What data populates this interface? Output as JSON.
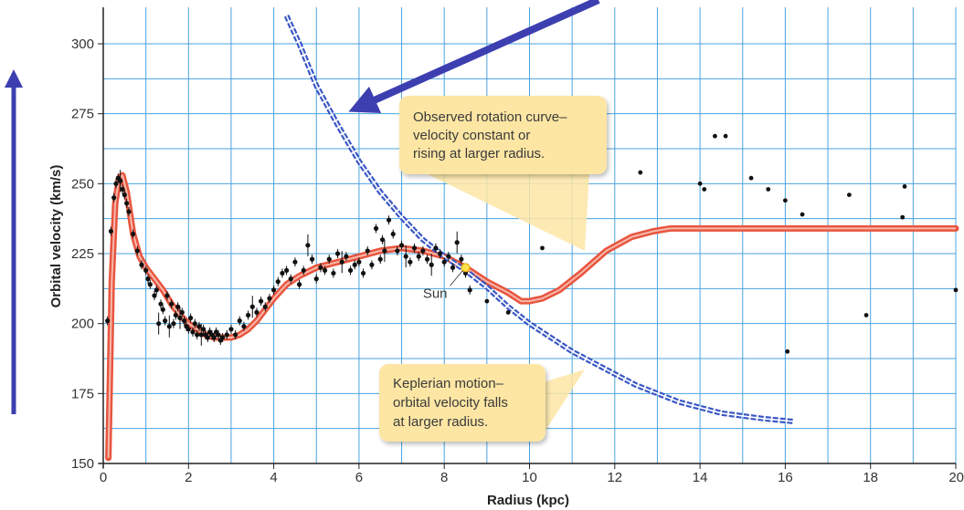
{
  "chart_data": {
    "type": "scatter",
    "title": "",
    "xlabel": "Radius (kpc)",
    "ylabel": "Orbital velocity (km/s)",
    "xlim": [
      0,
      20
    ],
    "ylim": [
      150,
      312
    ],
    "x_ticks": [
      0,
      2,
      4,
      6,
      8,
      10,
      12,
      14,
      16,
      18,
      20
    ],
    "y_ticks": [
      150,
      175,
      200,
      225,
      250,
      275,
      300
    ],
    "grid": true,
    "colors": {
      "grid": "#4aa3df",
      "observed": "#e8553f",
      "keplerian": "#3a57c4",
      "arrow": "#3d3fb0",
      "callout_fill": "#fde6a4",
      "points": "#111111",
      "sun": "#ffe34d"
    },
    "series": [
      {
        "kind": "observed_rotation_curve",
        "x": [
          0.12,
          0.2,
          0.28,
          0.37,
          0.45,
          0.55,
          0.7,
          0.85,
          1.0,
          1.2,
          1.4,
          1.6,
          1.8,
          2.0,
          2.2,
          2.4,
          2.6,
          2.8,
          3.0,
          3.2,
          3.4,
          3.6,
          3.8,
          4.0,
          4.3,
          4.6,
          5.0,
          5.5,
          6.0,
          6.5,
          7.0,
          7.5,
          8.0,
          8.5,
          9.0,
          9.5,
          9.8,
          10.0,
          10.3,
          10.7,
          11.2,
          11.8,
          12.4,
          12.9,
          13.3,
          14.0,
          16.0,
          18.0,
          20.0
        ],
        "y": [
          152,
          215,
          243,
          252,
          253,
          247,
          232,
          224,
          220,
          216,
          212,
          207,
          203,
          200,
          198,
          196,
          195,
          195,
          195,
          196,
          198,
          201,
          205,
          209,
          214,
          217,
          220,
          222,
          224,
          226,
          227,
          226,
          224,
          220,
          215,
          211,
          208,
          208,
          209,
          212,
          218,
          226,
          231,
          233,
          234,
          234,
          234,
          234,
          234
        ]
      },
      {
        "kind": "keplerian",
        "x": [
          4.3,
          4.6,
          5.0,
          5.5,
          6.0,
          6.5,
          7.0,
          7.5,
          8.0,
          8.5,
          9.0,
          9.5,
          10.0,
          10.5,
          11.0,
          11.5,
          12.0,
          12.5,
          13.0,
          13.5,
          14.0,
          14.5,
          15.0,
          15.5,
          16.2
        ],
        "y": [
          310,
          300,
          285,
          271,
          258,
          247,
          238,
          230,
          224,
          219,
          213,
          206,
          200,
          195,
          190,
          186,
          182,
          178,
          175,
          172,
          170,
          168,
          167,
          166,
          165
        ]
      },
      {
        "kind": "measurements",
        "x": [
          0.1,
          0.18,
          0.25,
          0.3,
          0.35,
          0.4,
          0.45,
          0.5,
          0.55,
          0.6,
          0.7,
          0.8,
          0.9,
          1.0,
          1.05,
          1.1,
          1.2,
          1.25,
          1.3,
          1.35,
          1.4,
          1.45,
          1.5,
          1.55,
          1.6,
          1.65,
          1.7,
          1.75,
          1.8,
          1.85,
          1.9,
          1.95,
          2.0,
          2.05,
          2.1,
          2.15,
          2.2,
          2.25,
          2.3,
          2.35,
          2.4,
          2.45,
          2.5,
          2.55,
          2.6,
          2.65,
          2.7,
          2.75,
          2.8,
          2.9,
          3.0,
          3.1,
          3.2,
          3.3,
          3.4,
          3.5,
          3.6,
          3.7,
          3.8,
          3.9,
          4.0,
          4.1,
          4.2,
          4.3,
          4.4,
          4.5,
          4.6,
          4.7,
          4.8,
          4.9,
          5.0,
          5.1,
          5.2,
          5.3,
          5.4,
          5.5,
          5.6,
          5.7,
          5.8,
          5.9,
          6.0,
          6.1,
          6.2,
          6.3,
          6.4,
          6.5,
          6.55,
          6.6,
          6.7,
          6.8,
          6.9,
          7.0,
          7.1,
          7.2,
          7.3,
          7.4,
          7.5,
          7.6,
          7.7,
          7.8,
          7.9,
          8.0,
          8.1,
          8.2,
          8.3,
          8.4,
          8.5,
          8.6,
          9.0,
          9.5,
          10.3,
          12.6,
          14.0,
          14.1,
          14.35,
          14.6,
          15.2,
          15.6,
          16.0,
          16.05,
          16.4,
          17.5,
          17.9,
          18.75,
          18.8,
          20.0
        ],
        "y": [
          201,
          233,
          245,
          250,
          252,
          251,
          248,
          246,
          243,
          240,
          232,
          226,
          221,
          219,
          216,
          214,
          210,
          212,
          200,
          207,
          205,
          201,
          210,
          199,
          207,
          200,
          203,
          206,
          202,
          204,
          201,
          199,
          198,
          202,
          197,
          200,
          196,
          199,
          196,
          198,
          196,
          195,
          197,
          196,
          195,
          197,
          196,
          194,
          195,
          196,
          198,
          196,
          201,
          199,
          203,
          206,
          204,
          208,
          206,
          209,
          212,
          215,
          218,
          219,
          216,
          222,
          214,
          219,
          228,
          223,
          216,
          220,
          219,
          223,
          218,
          225,
          222,
          224,
          219,
          221,
          222,
          218,
          226,
          221,
          234,
          223,
          230,
          226,
          237,
          232,
          226,
          228,
          224,
          222,
          227,
          224,
          226,
          223,
          221,
          227,
          225,
          222,
          224,
          220,
          229,
          223,
          218,
          212,
          208,
          204,
          227,
          254,
          250,
          248,
          267,
          267,
          252,
          248,
          244,
          190,
          239,
          246,
          203,
          238,
          249,
          212
        ]
      }
    ],
    "error_bar_x": [
      0.4,
      1.3,
      1.55,
      1.8,
      2.3,
      3.5,
      4.8,
      5.6,
      6.6,
      7.1,
      7.7,
      8.3
    ],
    "sun_point": {
      "x": 8.5,
      "y": 220,
      "label": "Sun"
    },
    "annotations": [
      {
        "lines": [
          "Observed rotation curve–",
          "velocity constant or",
          "rising at larger radius."
        ]
      },
      {
        "lines": [
          "Keplerian motion–",
          "orbital velocity falls",
          "at larger radius."
        ]
      }
    ]
  }
}
